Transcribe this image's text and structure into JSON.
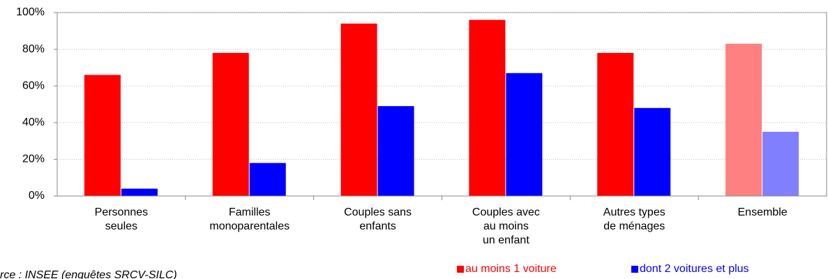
{
  "chart_data": {
    "type": "bar",
    "categories": [
      "Personnes\nseules",
      "Familles\nmonoparentales",
      "Couples sans\nenfants",
      "Couples avec\nau moins\nun enfant",
      "Autres types\nde ménages",
      "Ensemble"
    ],
    "series": [
      {
        "name": "au moins 1 voiture",
        "color": "#ff0000",
        "colors": [
          "#ff0000",
          "#ff0000",
          "#ff0000",
          "#ff0000",
          "#ff0000",
          "#ff8080"
        ],
        "values": [
          66,
          78,
          94,
          96,
          78,
          83
        ]
      },
      {
        "name": "dont 2 voitures et plus",
        "color": "#0000ff",
        "colors": [
          "#0000ff",
          "#0000ff",
          "#0000ff",
          "#0000ff",
          "#0000ff",
          "#8080ff"
        ],
        "values": [
          4,
          18,
          49,
          67,
          48,
          35
        ]
      }
    ],
    "ylim": [
      0,
      100
    ],
    "yticks": [
      {
        "value": 0,
        "label": "0%"
      },
      {
        "value": 20,
        "label": "20%"
      },
      {
        "value": 40,
        "label": "40%"
      },
      {
        "value": 60,
        "label": "60%"
      },
      {
        "value": 80,
        "label": "80%"
      },
      {
        "value": 100,
        "label": "100%"
      }
    ],
    "grid": true,
    "source": "rce : INSEE (enquêtes SRCV-SILC)"
  }
}
